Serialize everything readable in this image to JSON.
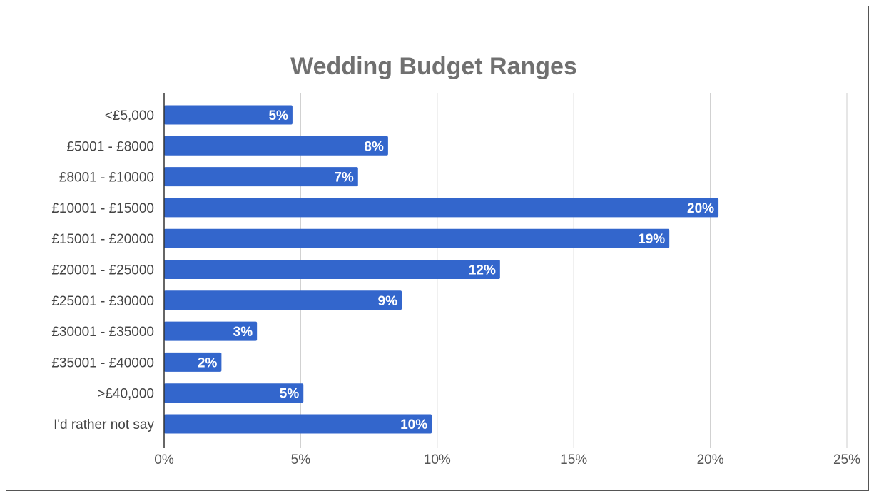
{
  "chart_data": {
    "type": "bar",
    "orientation": "horizontal",
    "title": "Wedding Budget Ranges",
    "xlabel": "",
    "ylabel": "",
    "categories": [
      "<£5,000",
      "£5001 - £8000",
      "£8001 - £10000",
      "£10001 - £15000",
      "£15001 - £20000",
      "£20001 - £25000",
      "£25001 - £30000",
      "£30001 - £35000",
      "£35001 - £40000",
      ">£40,000",
      "I'd rather not say"
    ],
    "values": [
      4.7,
      8.2,
      7.1,
      20.3,
      18.5,
      12.3,
      8.7,
      3.4,
      2.1,
      5.1,
      9.8
    ],
    "data_labels": [
      "5%",
      "8%",
      "7%",
      "20%",
      "19%",
      "12%",
      "9%",
      "3%",
      "2%",
      "5%",
      "10%"
    ],
    "xlim": [
      0,
      25
    ],
    "xticks": [
      0,
      5,
      10,
      15,
      20,
      25
    ],
    "xtick_labels": [
      "0%",
      "5%",
      "10%",
      "15%",
      "20%",
      "25%"
    ],
    "grid": "vertical",
    "legend": "none",
    "colors": {
      "bar": "#3366cc",
      "grid": "#cccccc",
      "axis": "#333333",
      "title": "#707070"
    }
  }
}
